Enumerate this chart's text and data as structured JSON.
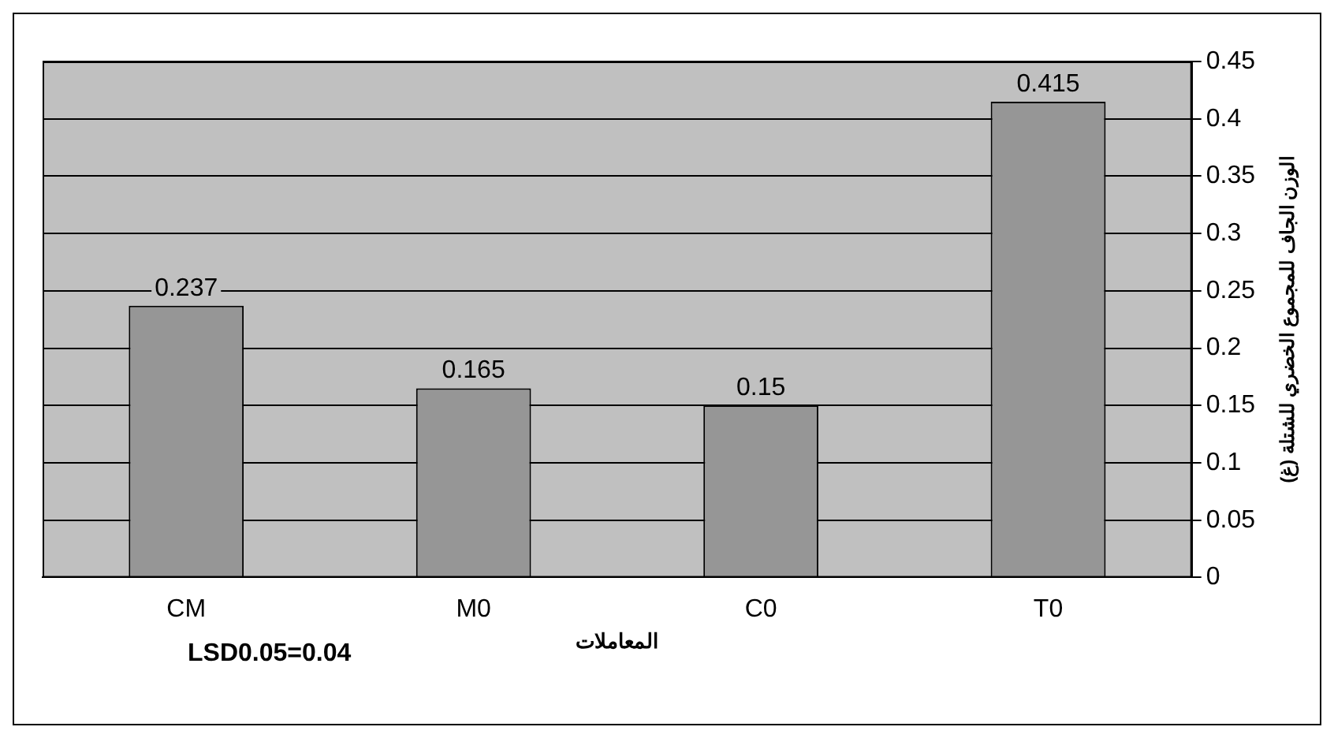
{
  "chart_data": {
    "type": "bar",
    "categories": [
      "CM",
      "M0",
      "C0",
      "T0"
    ],
    "values": [
      0.237,
      0.165,
      0.15,
      0.415
    ],
    "color": "#969696",
    "xlabel": "المعاملات",
    "ylabel": "الوزن الجاف للمجموع الخضري للشتلة (غ)",
    "ylim": [
      0,
      0.45
    ],
    "yticks": [
      0,
      0.05,
      0.1,
      0.15,
      0.2,
      0.25,
      0.3,
      0.35,
      0.4,
      0.45
    ],
    "grid": "y",
    "data_labels": true,
    "legend": false,
    "annotations": [
      "LSD0.05=0.04"
    ]
  }
}
